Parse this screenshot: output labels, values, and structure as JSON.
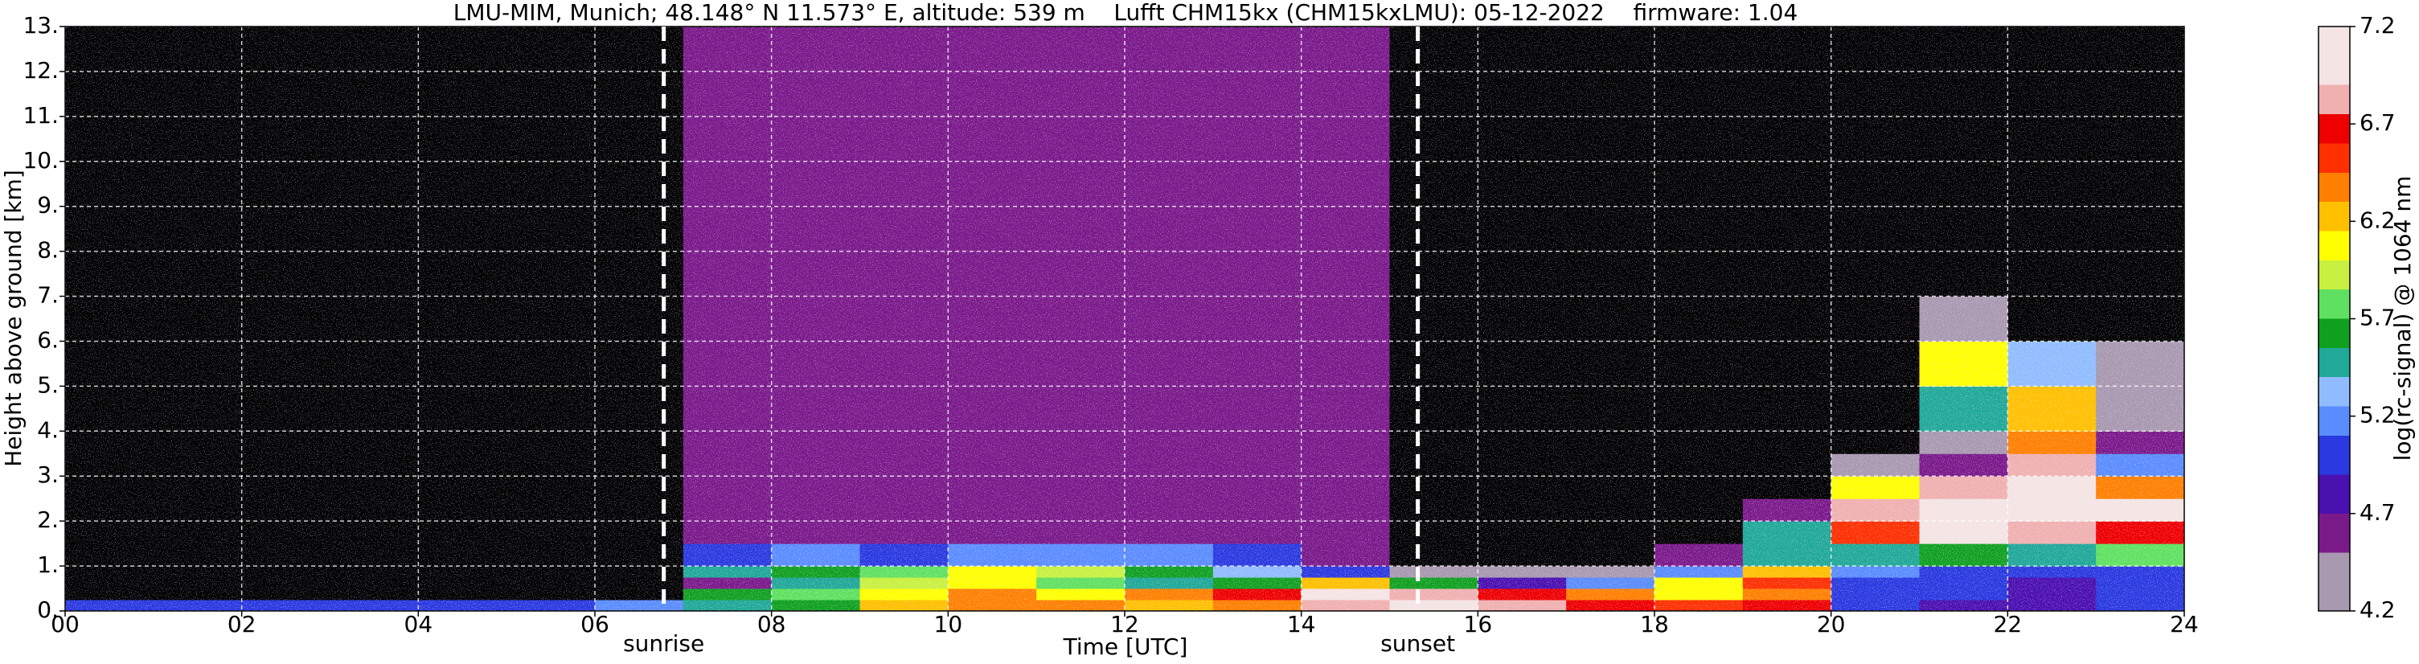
{
  "chart_data": {
    "type": "heatmap",
    "title": "LMU-MIM, Munich; 48.148° N 11.573° E, altitude: 539 m    Lufft CHM15kx (CHM15kxLMU): 05-12-2022    firmware: 1.04",
    "xlabel": "Time [UTC]",
    "ylabel": "Height above ground [km]",
    "colorbar_label": "log(rc-signal) @ 1064 nm",
    "xlim": [
      0,
      24
    ],
    "ylim": [
      0,
      13
    ],
    "xticks": [
      {
        "value": 0,
        "label": "00"
      },
      {
        "value": 2,
        "label": "02"
      },
      {
        "value": 4,
        "label": "04"
      },
      {
        "value": 6,
        "label": "06"
      },
      {
        "value": 8,
        "label": "08"
      },
      10,
      12,
      14,
      16,
      18,
      20,
      22,
      24
    ],
    "yticks": [
      {
        "value": 0,
        "label": "0."
      },
      {
        "value": 1,
        "label": "1."
      },
      {
        "value": 2,
        "label": "2."
      },
      {
        "value": 3,
        "label": "3."
      },
      {
        "value": 4,
        "label": "4."
      },
      {
        "value": 5,
        "label": "5."
      },
      {
        "value": 6,
        "label": "6."
      },
      {
        "value": 7,
        "label": "7."
      },
      {
        "value": 8,
        "label": "8."
      },
      {
        "value": 9,
        "label": "9."
      },
      {
        "value": 10,
        "label": "10."
      },
      {
        "value": 11,
        "label": "11."
      },
      {
        "value": 12,
        "label": "12."
      },
      {
        "value": 13,
        "label": "13."
      }
    ],
    "grid": true,
    "clim": [
      4.2,
      7.2
    ],
    "cticks": [
      4.2,
      4.7,
      5.2,
      5.7,
      6.2,
      6.7,
      7.2
    ],
    "under_color": "#000000",
    "colorscale": [
      [
        4.2,
        "#a898b0"
      ],
      [
        4.5,
        "#7a1a8a"
      ],
      [
        4.7,
        "#4a10b0"
      ],
      [
        4.9,
        "#2a3ae0"
      ],
      [
        5.1,
        "#5a8cff"
      ],
      [
        5.25,
        "#90bcff"
      ],
      [
        5.4,
        "#20a898"
      ],
      [
        5.55,
        "#10a020"
      ],
      [
        5.7,
        "#60e060"
      ],
      [
        5.85,
        "#c8f040"
      ],
      [
        6.0,
        "#ffff00"
      ],
      [
        6.15,
        "#ffc000"
      ],
      [
        6.3,
        "#ff8000"
      ],
      [
        6.45,
        "#ff3000"
      ],
      [
        6.6,
        "#ee0000"
      ],
      [
        6.75,
        "#f0b0b0"
      ],
      [
        6.9,
        "#f4e4e4"
      ],
      [
        7.2,
        "#ffffff"
      ]
    ],
    "x_edges": [
      0,
      1,
      2,
      3,
      4,
      5,
      6,
      7,
      8,
      9,
      10,
      11,
      12,
      13,
      14,
      15,
      16,
      17,
      18,
      19,
      20,
      21,
      22,
      23,
      24
    ],
    "y_edges": [
      0,
      0.25,
      0.5,
      0.75,
      1,
      1.5,
      2,
      2.5,
      3,
      3.5,
      4,
      5,
      6,
      7,
      8,
      10,
      13
    ],
    "z": [
      [
        5.0,
        5.0,
        5.0,
        5.0,
        5.0,
        5.0,
        5.1,
        5.5,
        5.6,
        6.2,
        6.4,
        6.3,
        6.2,
        6.4,
        6.8,
        7.0,
        6.8,
        6.6,
        6.5,
        6.6,
        5.0,
        4.8,
        4.8,
        4.9
      ],
      [
        4.0,
        4.0,
        4.0,
        4.0,
        4.0,
        4.0,
        4.0,
        5.6,
        5.8,
        6.0,
        6.4,
        6.1,
        6.3,
        6.6,
        6.9,
        6.8,
        6.6,
        6.3,
        6.0,
        6.3,
        5.0,
        4.9,
        4.8,
        4.9
      ],
      [
        4.0,
        4.0,
        4.0,
        4.0,
        4.0,
        4.0,
        4.0,
        4.5,
        5.5,
        5.9,
        6.0,
        5.7,
        5.5,
        5.6,
        6.2,
        5.6,
        4.8,
        5.2,
        6.0,
        6.5,
        5.0,
        4.9,
        4.8,
        5.0
      ],
      [
        4.0,
        4.0,
        4.0,
        4.0,
        4.0,
        4.0,
        4.0,
        5.5,
        5.6,
        5.8,
        6.0,
        5.9,
        5.6,
        5.3,
        5.0,
        4.4,
        4.3,
        4.4,
        5.2,
        6.2,
        5.1,
        5.0,
        5.0,
        5.0
      ],
      [
        4.0,
        4.0,
        4.0,
        4.0,
        4.0,
        4.0,
        4.0,
        5.0,
        5.2,
        5.0,
        5.1,
        5.2,
        5.1,
        4.9,
        4.6,
        4.0,
        4.0,
        4.0,
        4.6,
        5.4,
        5.5,
        5.6,
        5.5,
        5.8
      ],
      [
        4.0,
        4.0,
        4.0,
        4.0,
        4.0,
        4.0,
        4.0,
        4.5,
        4.5,
        4.5,
        4.5,
        4.5,
        4.5,
        4.5,
        4.5,
        4.0,
        4.0,
        4.0,
        4.0,
        5.4,
        6.5,
        6.9,
        6.8,
        6.6
      ],
      [
        4.0,
        4.0,
        4.0,
        4.0,
        4.0,
        4.0,
        4.0,
        4.5,
        4.5,
        4.5,
        4.5,
        4.5,
        4.5,
        4.5,
        4.5,
        4.0,
        4.0,
        4.0,
        4.0,
        4.6,
        6.8,
        7.1,
        6.9,
        6.9
      ],
      [
        4.0,
        4.0,
        4.0,
        4.0,
        4.0,
        4.0,
        4.0,
        4.5,
        4.5,
        4.5,
        4.5,
        4.5,
        4.5,
        4.5,
        4.5,
        4.0,
        4.0,
        4.0,
        4.0,
        4.0,
        6.0,
        6.8,
        6.9,
        6.3
      ],
      [
        4.0,
        4.0,
        4.0,
        4.0,
        4.0,
        4.0,
        4.0,
        4.5,
        4.5,
        4.5,
        4.5,
        4.5,
        4.5,
        4.5,
        4.5,
        4.0,
        4.0,
        4.0,
        4.0,
        4.0,
        4.3,
        4.5,
        6.8,
        5.2
      ],
      [
        4.0,
        4.0,
        4.0,
        4.0,
        4.0,
        4.0,
        4.0,
        4.5,
        4.5,
        4.5,
        4.5,
        4.5,
        4.5,
        4.5,
        4.5,
        4.0,
        4.0,
        4.0,
        4.0,
        4.0,
        4.0,
        4.3,
        6.4,
        4.5
      ],
      [
        4.0,
        4.0,
        4.0,
        4.0,
        4.0,
        4.0,
        4.0,
        4.5,
        4.5,
        4.5,
        4.5,
        4.5,
        4.5,
        4.5,
        4.5,
        4.0,
        4.0,
        4.0,
        4.0,
        4.0,
        4.0,
        5.4,
        6.2,
        4.3
      ],
      [
        4.0,
        4.0,
        4.0,
        4.0,
        4.0,
        4.0,
        4.0,
        4.5,
        4.5,
        4.5,
        4.5,
        4.5,
        4.5,
        4.5,
        4.5,
        4.0,
        4.0,
        4.0,
        4.0,
        4.0,
        4.0,
        6.0,
        5.3,
        4.2
      ],
      [
        4.0,
        4.0,
        4.0,
        4.0,
        4.0,
        4.0,
        4.0,
        4.5,
        4.5,
        4.5,
        4.5,
        4.5,
        4.5,
        4.5,
        4.5,
        4.0,
        4.0,
        4.0,
        4.0,
        4.0,
        4.0,
        4.3,
        4.0,
        4.0
      ],
      [
        4.0,
        4.0,
        4.0,
        4.0,
        4.0,
        4.0,
        4.0,
        4.5,
        4.5,
        4.5,
        4.5,
        4.5,
        4.5,
        4.5,
        4.5,
        4.0,
        4.0,
        4.0,
        4.0,
        4.0,
        4.0,
        4.0,
        4.0,
        4.0
      ],
      [
        4.0,
        4.0,
        4.0,
        4.0,
        4.0,
        4.0,
        4.0,
        4.5,
        4.5,
        4.5,
        4.5,
        4.5,
        4.5,
        4.5,
        4.5,
        4.0,
        4.0,
        4.0,
        4.0,
        4.0,
        4.0,
        4.0,
        4.0,
        4.0
      ],
      [
        4.0,
        4.0,
        4.0,
        4.0,
        4.0,
        4.0,
        4.0,
        4.5,
        4.5,
        4.5,
        4.5,
        4.5,
        4.5,
        4.5,
        4.5,
        4.0,
        4.0,
        4.0,
        4.0,
        4.0,
        4.0,
        4.0,
        4.0,
        4.0
      ]
    ],
    "annotations": [
      {
        "text": "sunrise",
        "x": 6.78
      },
      {
        "text": "sunset",
        "x": 15.32
      }
    ]
  }
}
